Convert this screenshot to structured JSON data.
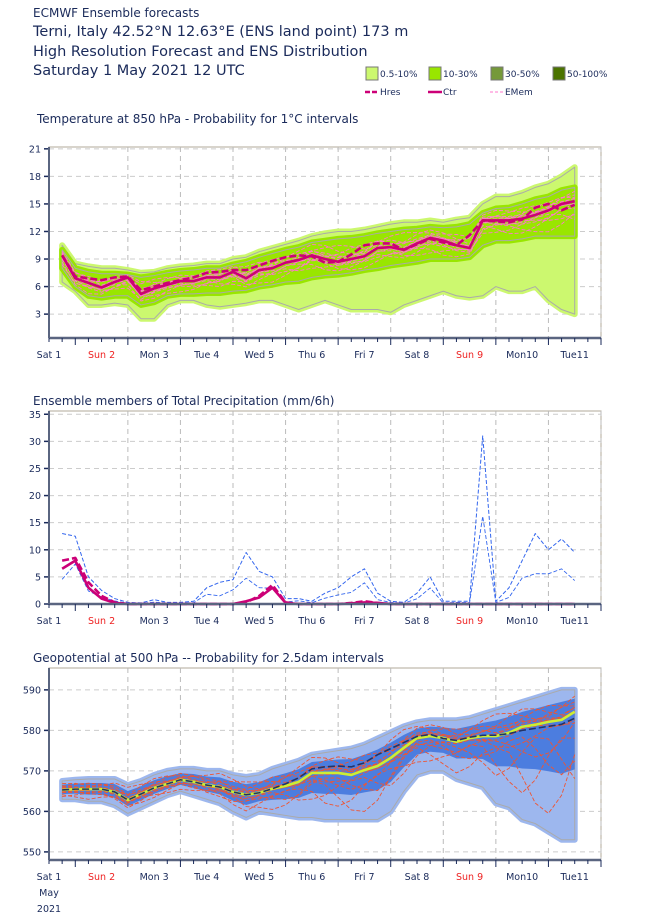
{
  "header": {
    "line1": "ECMWF Ensemble forecasts",
    "line2": "Terni, Italy 42.52°N 12.63°E (ENS land point) 173 m",
    "line3": "High Resolution Forecast and ENS Distribution",
    "line4": "Saturday  1 May 2021 12 UTC"
  },
  "legend": {
    "boxes": [
      {
        "label": "0.5-10%",
        "color": "#ccf86f"
      },
      {
        "label": "10-30%",
        "color": "#99e600"
      },
      {
        "label": "30-50%",
        "color": "#75993a"
      },
      {
        "label": "50-100%",
        "color": "#4b7300"
      }
    ],
    "lines": [
      {
        "label": "Hres",
        "color": "#cc0077",
        "style": "dashed-thick"
      },
      {
        "label": "Ctr",
        "color": "#cc0077",
        "style": "solid-thick"
      },
      {
        "label": "EMem",
        "color": "#ff77cc",
        "style": "dashed-thin"
      }
    ]
  },
  "axis": {
    "day_labels": [
      {
        "label": "Sat 1",
        "date": "2021-05-01T12",
        "weekend": false
      },
      {
        "label": "Sun 2",
        "date": "2021-05-02T12",
        "weekend": true
      },
      {
        "label": "Mon 3",
        "date": "2021-05-03T12",
        "weekend": false
      },
      {
        "label": "Tue 4",
        "date": "2021-05-04T12",
        "weekend": false
      },
      {
        "label": "Wed 5",
        "date": "2021-05-05T12",
        "weekend": false
      },
      {
        "label": "Thu 6",
        "date": "2021-05-06T12",
        "weekend": false
      },
      {
        "label": "Fri 7",
        "date": "2021-05-07T12",
        "weekend": false
      },
      {
        "label": "Sat 8",
        "date": "2021-05-08T12",
        "weekend": false
      },
      {
        "label": "Sun 9",
        "date": "2021-05-09T12",
        "weekend": true
      },
      {
        "label": "Mon10",
        "date": "2021-05-10T12",
        "weekend": false
      },
      {
        "label": "Tue11",
        "date": "2021-05-11T12",
        "weekend": false
      }
    ],
    "month": "May",
    "year": "2021",
    "weekday_color": "#1a2a5a",
    "weekend_color": "#ee2222",
    "xlim": [
      "2021-05-01T12",
      "2021-05-12T00"
    ]
  },
  "times": [
    "2021-05-01T18",
    "2021-05-02T00",
    "2021-05-02T06",
    "2021-05-02T12",
    "2021-05-02T18",
    "2021-05-03T00",
    "2021-05-03T06",
    "2021-05-03T12",
    "2021-05-03T18",
    "2021-05-04T00",
    "2021-05-04T06",
    "2021-05-04T12",
    "2021-05-04T18",
    "2021-05-05T00",
    "2021-05-05T06",
    "2021-05-05T12",
    "2021-05-05T18",
    "2021-05-06T00",
    "2021-05-06T06",
    "2021-05-06T12",
    "2021-05-06T18",
    "2021-05-07T00",
    "2021-05-07T06",
    "2021-05-07T12",
    "2021-05-07T18",
    "2021-05-08T00",
    "2021-05-08T06",
    "2021-05-08T12",
    "2021-05-08T18",
    "2021-05-09T00",
    "2021-05-09T06",
    "2021-05-09T12",
    "2021-05-09T18",
    "2021-05-10T00",
    "2021-05-10T06",
    "2021-05-10T12",
    "2021-05-10T18",
    "2021-05-11T00",
    "2021-05-11T06",
    "2021-05-11T12"
  ],
  "chart_data": [
    {
      "type": "area",
      "title": "Temperature at 850 hPa - Probability for 1°C intervals",
      "ylim": [
        0.4,
        21.2
      ],
      "yticks": [
        3,
        6,
        9,
        12,
        15,
        18,
        21
      ],
      "grid": true,
      "bands": [
        {
          "name": "0.5-10%",
          "color": "#ccf86f",
          "upper": [
            10.5,
            8.5,
            8.2,
            8.0,
            8.0,
            7.8,
            7.5,
            7.6,
            8.0,
            8.2,
            8.3,
            8.5,
            8.5,
            9.0,
            9.2,
            9.8,
            10.2,
            10.6,
            11.0,
            11.5,
            11.8,
            12.0,
            12.0,
            12.2,
            12.5,
            12.8,
            13.0,
            13.0,
            13.2,
            13.0,
            13.3,
            13.5,
            15.0,
            15.8,
            15.8,
            16.2,
            16.8,
            17.2,
            18.0,
            19.0
          ],
          "lower": [
            6.5,
            5.5,
            4.0,
            4.0,
            4.2,
            4.0,
            2.5,
            2.5,
            4.0,
            4.5,
            4.5,
            4.0,
            3.8,
            4.0,
            4.2,
            4.5,
            4.5,
            4.0,
            3.5,
            4.0,
            4.5,
            4.0,
            3.5,
            3.5,
            3.5,
            3.2,
            4.0,
            4.5,
            5.0,
            5.5,
            5.0,
            4.8,
            5.0,
            6.0,
            5.5,
            5.5,
            6.0,
            4.5,
            3.5,
            3.0
          ]
        },
        {
          "name": "10-30%",
          "color": "#99e600",
          "upper": [
            10.0,
            8.0,
            7.6,
            7.4,
            7.4,
            7.3,
            7.0,
            7.2,
            7.5,
            7.7,
            7.8,
            8.0,
            8.0,
            8.4,
            8.7,
            9.2,
            9.6,
            10.0,
            10.3,
            10.8,
            11.0,
            11.2,
            11.3,
            11.5,
            11.8,
            12.0,
            12.2,
            12.3,
            12.5,
            12.4,
            12.5,
            12.8,
            14.0,
            14.5,
            14.6,
            15.0,
            15.5,
            15.8,
            16.5,
            16.8
          ],
          "lower": [
            8.0,
            6.0,
            5.0,
            4.8,
            5.0,
            5.0,
            4.0,
            4.3,
            5.0,
            5.2,
            5.2,
            5.3,
            5.3,
            5.5,
            5.6,
            6.0,
            6.2,
            6.5,
            6.6,
            7.0,
            7.2,
            7.3,
            7.5,
            7.8,
            8.0,
            8.3,
            8.5,
            8.7,
            9.0,
            9.0,
            9.0,
            9.2,
            10.5,
            11.0,
            11.0,
            11.2,
            11.5,
            11.5,
            11.5,
            11.5
          ]
        }
      ],
      "members_color": "#ff77cc",
      "series": [
        {
          "name": "Ctr",
          "color": "#cc0077",
          "dashed": false,
          "values": [
            9.4,
            6.9,
            6.4,
            5.9,
            6.5,
            7.0,
            5.2,
            5.8,
            6.2,
            6.6,
            6.6,
            7.0,
            7.0,
            7.6,
            6.9,
            7.8,
            8.0,
            8.6,
            8.9,
            9.4,
            9.0,
            8.7,
            9.0,
            9.3,
            10.2,
            10.3,
            10.0,
            10.7,
            11.3,
            11.0,
            10.5,
            10.2,
            13.2,
            13.2,
            13.2,
            13.4,
            13.8,
            14.3,
            15.0,
            15.3
          ]
        },
        {
          "name": "Hres",
          "color": "#cc0077",
          "dashed": true,
          "values": [
            9.4,
            7.1,
            6.9,
            6.7,
            7.0,
            7.1,
            5.6,
            6.0,
            6.4,
            6.7,
            7.0,
            7.5,
            7.6,
            7.8,
            7.8,
            8.3,
            8.8,
            9.2,
            9.4,
            9.3,
            8.6,
            8.7,
            9.5,
            10.5,
            10.7,
            10.7,
            10.0,
            10.6,
            11.2,
            10.8,
            10.5,
            11.6,
            13.2,
            13.1,
            13.0,
            13.3,
            14.6,
            15.0,
            14.3,
            14.9
          ]
        }
      ]
    },
    {
      "type": "line",
      "title": "Ensemble members of Total Precipitation (mm/6h)",
      "ylim": [
        0,
        35.6
      ],
      "yticks": [
        0,
        5,
        10,
        15,
        20,
        25,
        30,
        35
      ],
      "grid": true,
      "bands": [],
      "series": [
        {
          "name": "EMem",
          "color": "#3366ee",
          "dashed": true,
          "thin": true,
          "values": [
            13,
            12.5,
            5,
            2.5,
            1,
            0.3,
            0.2,
            0.8,
            0.3,
            0.3,
            0.5,
            3,
            4,
            4.5,
            9.5,
            6,
            5,
            1,
            1,
            0.5,
            2,
            3,
            5,
            6.5,
            2,
            0.5,
            0.3,
            2,
            5,
            0.5,
            0.5,
            0.5,
            31,
            0.5,
            3,
            8,
            13,
            10,
            12,
            9.5
          ]
        },
        {
          "name": "Hres",
          "color": "#cc0077",
          "dashed": true,
          "values": [
            8,
            8.5,
            4,
            1.5,
            0.3,
            0,
            0,
            0,
            0,
            0,
            0,
            0,
            0,
            0,
            0.3,
            1.5,
            3.5,
            0.3,
            0,
            0,
            0,
            0,
            0.2,
            0.5,
            0.2,
            0,
            0,
            0,
            0,
            0,
            0,
            0,
            0,
            0,
            0,
            0,
            0,
            0,
            0,
            0
          ]
        },
        {
          "name": "Ctr",
          "color": "#cc0077",
          "dashed": false,
          "values": [
            6.5,
            8,
            3,
            1,
            0.2,
            0,
            0,
            0,
            0,
            0,
            0,
            0,
            0,
            0,
            0.5,
            1.2,
            3,
            0.2,
            0,
            0,
            0,
            0,
            0.1,
            0.3,
            0.2,
            0,
            0,
            0,
            0,
            0,
            0,
            0,
            0,
            0,
            0,
            0,
            0,
            0,
            0,
            0
          ]
        }
      ]
    },
    {
      "type": "area",
      "title": "Geopotential at 500 hPa -- Probability for 2.5dam intervals",
      "ylim": [
        548,
        595.4
      ],
      "yticks": [
        550,
        560,
        570,
        580,
        590
      ],
      "grid": true,
      "bands": [
        {
          "name": "0.5-10%",
          "color": "#9db7ee",
          "upper": [
            567.5,
            567.8,
            568,
            568,
            568,
            566.5,
            567.5,
            569,
            570,
            570.5,
            570.5,
            570,
            570,
            569,
            568.5,
            569,
            570.5,
            571.5,
            572.5,
            574,
            574.5,
            575,
            575.5,
            576.5,
            578,
            579.5,
            581,
            582,
            582.5,
            582.5,
            582.5,
            583,
            584,
            585,
            586,
            587,
            588,
            589,
            590,
            590
          ],
          "lower": [
            563,
            563,
            562.5,
            562.5,
            561.5,
            559.5,
            561,
            562.5,
            564,
            565,
            564,
            563,
            562,
            560,
            558.5,
            560,
            559.5,
            559,
            558.5,
            558.5,
            558,
            558,
            558,
            558,
            558,
            560,
            565,
            569,
            570,
            570,
            568,
            567,
            566,
            562,
            561,
            558,
            557,
            555,
            553,
            553
          ]
        }
      ],
      "members_color": "#ee5533",
      "inner_color": "#4477dd",
      "series": [
        {
          "name": "Ctr",
          "color": "#ccee33",
          "dashed": false,
          "values": [
            565.3,
            565.5,
            565.5,
            565.5,
            564.8,
            562.8,
            564.3,
            565.8,
            566.8,
            567.8,
            567.3,
            566.5,
            566.0,
            564.8,
            564.1,
            564.6,
            565.6,
            566.3,
            567.3,
            569.5,
            569.5,
            569.5,
            569.0,
            570.2,
            571.2,
            573.2,
            575.7,
            578.1,
            578.6,
            578.1,
            577.2,
            578.1,
            578.6,
            578.6,
            579.4,
            580.9,
            581.4,
            582.1,
            582.6,
            584.6
          ]
        },
        {
          "name": "Hres",
          "color": "#ccee33",
          "dashed": true,
          "values": [
            565.3,
            565.5,
            565.5,
            565.5,
            564.8,
            562.8,
            564.3,
            565.8,
            566.8,
            567.8,
            567.3,
            566.5,
            566.0,
            564.8,
            564.1,
            564.6,
            565.6,
            566.8,
            568.3,
            570.5,
            571.0,
            571.2,
            571.0,
            572.0,
            574.0,
            575.5,
            577.0,
            578.5,
            579.0,
            578.0,
            577.5,
            578.3,
            578.8,
            578.8,
            579.2,
            580.0,
            580.5,
            581.0,
            581.5,
            583.0
          ]
        }
      ]
    }
  ]
}
